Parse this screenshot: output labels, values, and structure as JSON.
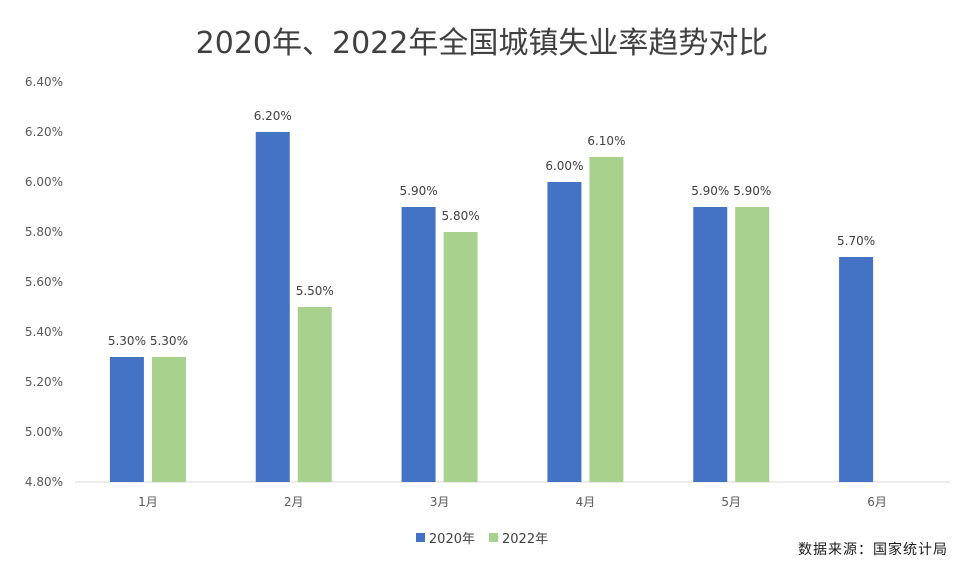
{
  "chart_data": {
    "type": "bar",
    "title": "2020年、2022年全国城镇失业率趋势对比",
    "categories": [
      "1月",
      "2月",
      "3月",
      "4月",
      "5月",
      "6月"
    ],
    "series": [
      {
        "name": "2020年",
        "color": "#4472C4",
        "values": [
          5.3,
          6.2,
          5.9,
          6.0,
          5.9,
          5.7
        ],
        "labels": [
          "5.30%",
          "6.20%",
          "5.90%",
          "6.00%",
          "5.90%",
          "5.70%"
        ]
      },
      {
        "name": "2022年",
        "color": "#A9D18E",
        "values": [
          5.3,
          5.5,
          5.8,
          6.1,
          5.9,
          null
        ],
        "labels": [
          "5.30%",
          "5.50%",
          "5.80%",
          "6.10%",
          "5.90%",
          null
        ]
      }
    ],
    "ylim": [
      4.8,
      6.4
    ],
    "yticks": [
      4.8,
      5.0,
      5.2,
      5.4,
      5.6,
      5.8,
      6.0,
      6.2,
      6.4
    ],
    "ytick_labels": [
      "4.80%",
      "5.00%",
      "5.20%",
      "5.40%",
      "5.60%",
      "5.80%",
      "6.00%",
      "6.20%",
      "6.40%"
    ],
    "grid": false,
    "legend_position": "bottom"
  },
  "source_note": "数据来源：国家统计局"
}
